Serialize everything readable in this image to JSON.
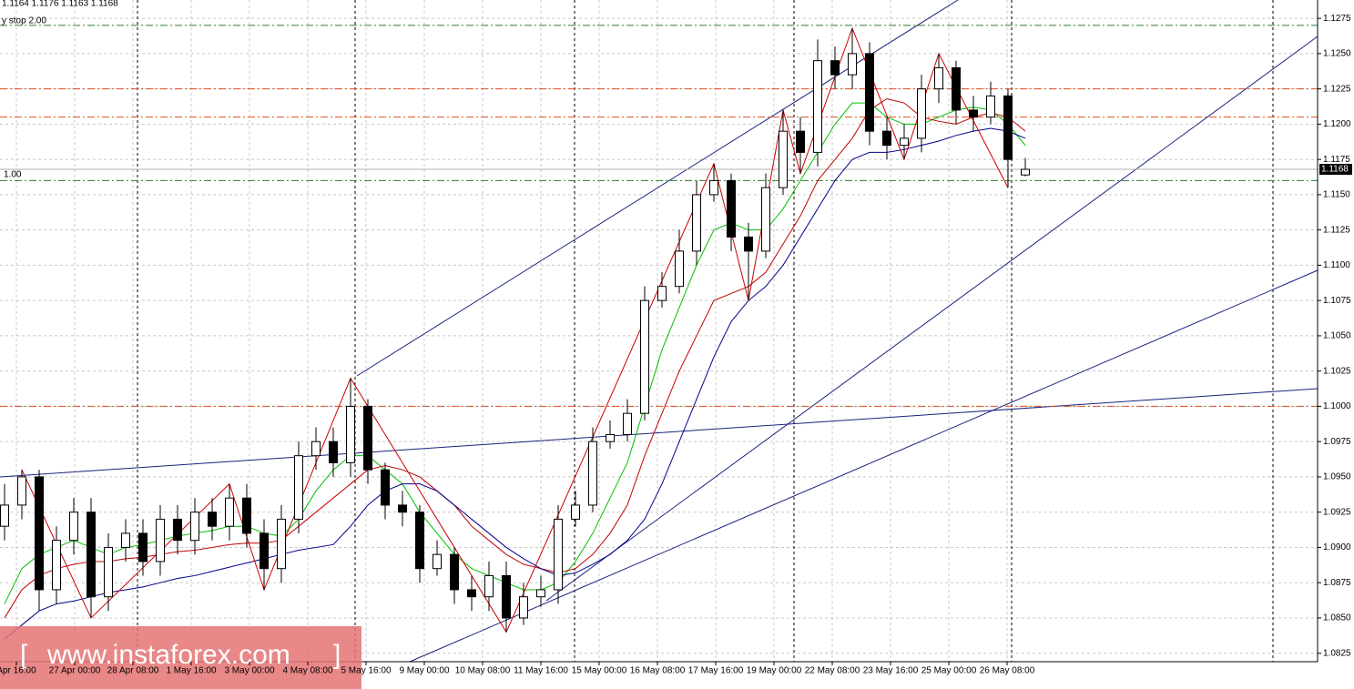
{
  "chart_data": {
    "type": "candlestick",
    "title": "1.1164 1.1176 1.1163 1.1168",
    "indicator_label": "y stop 2.00",
    "level_label": "1.00",
    "watermark": "www.instaforex.com",
    "categories": [
      "Apr 16:00",
      "27 Apr 00:00",
      "28 Apr 08:00",
      "1 May 16:00",
      "3 May 00:00",
      "4 May 08:00",
      "5 May 16:00",
      "9 May 00:00",
      "10 May 08:00",
      "11 May 16:00",
      "15 May 00:00",
      "16 May 08:00",
      "17 May 16:00",
      "19 May 00:00",
      "22 May 08:00",
      "23 May 16:00",
      "25 May 00:00",
      "26 May 08:00"
    ],
    "open": [
      1.0915,
      1.093,
      1.095,
      1.087,
      1.0905,
      1.0925,
      1.0865,
      1.09,
      1.091,
      1.089,
      1.092,
      1.0905,
      1.0925,
      1.0915,
      1.0935,
      1.091,
      1.0885,
      1.092,
      1.0965,
      1.0975,
      1.096,
      1.1,
      1.0955,
      1.093,
      1.0925,
      1.0885,
      1.0895,
      1.087,
      1.0865,
      1.088,
      1.085,
      1.0865,
      1.087,
      1.092,
      1.093,
      1.0975,
      1.098,
      1.0995,
      1.1075,
      1.1085,
      1.111,
      1.115,
      1.116,
      1.112,
      1.111,
      1.1155,
      1.1195,
      1.118,
      1.1245,
      1.1235,
      1.125,
      1.1195,
      1.1185,
      1.119,
      1.1225,
      1.124,
      1.121,
      1.1205,
      1.122,
      1.1164
    ],
    "high": [
      1.0945,
      1.0955,
      1.0955,
      1.0915,
      1.0935,
      1.0935,
      1.091,
      1.092,
      1.092,
      1.093,
      1.093,
      1.0935,
      1.0935,
      1.0945,
      1.0945,
      1.092,
      1.093,
      1.0975,
      1.0985,
      1.0985,
      1.102,
      1.1005,
      1.096,
      1.094,
      1.093,
      1.0905,
      1.09,
      1.088,
      1.089,
      1.089,
      1.0875,
      1.088,
      1.093,
      1.094,
      1.0985,
      1.099,
      1.1005,
      1.1085,
      1.1095,
      1.1125,
      1.116,
      1.1172,
      1.1165,
      1.113,
      1.1165,
      1.121,
      1.1205,
      1.126,
      1.1255,
      1.1268,
      1.1258,
      1.1205,
      1.12,
      1.1235,
      1.125,
      1.1245,
      1.122,
      1.123,
      1.1225,
      1.1176
    ],
    "low": [
      1.0905,
      1.092,
      1.0855,
      1.086,
      1.0895,
      1.085,
      1.0855,
      1.089,
      1.088,
      1.088,
      1.0895,
      1.0895,
      1.0905,
      1.0905,
      1.09,
      1.087,
      1.0875,
      1.091,
      1.0955,
      1.095,
      1.095,
      1.0945,
      1.092,
      1.0915,
      1.0875,
      1.088,
      1.086,
      1.0855,
      1.0855,
      1.084,
      1.0845,
      1.0858,
      1.086,
      1.0915,
      1.0925,
      1.097,
      1.0975,
      1.099,
      1.107,
      1.108,
      1.11,
      1.1145,
      1.111,
      1.1075,
      1.1105,
      1.115,
      1.1165,
      1.117,
      1.1225,
      1.1225,
      1.1185,
      1.1175,
      1.1175,
      1.118,
      1.1215,
      1.12,
      1.1195,
      1.12,
      1.1155,
      1.1163
    ],
    "close": [
      1.093,
      1.095,
      1.087,
      1.0905,
      1.0925,
      1.0865,
      1.09,
      1.091,
      1.089,
      1.092,
      1.0905,
      1.0925,
      1.0915,
      1.0935,
      1.091,
      1.0885,
      1.092,
      1.0965,
      1.0975,
      1.096,
      1.1,
      1.0955,
      1.093,
      1.0925,
      1.0885,
      1.0895,
      1.087,
      1.0865,
      1.088,
      1.085,
      1.0865,
      1.087,
      1.092,
      1.093,
      1.0975,
      1.098,
      1.0995,
      1.1075,
      1.1085,
      1.111,
      1.115,
      1.116,
      1.112,
      1.111,
      1.1155,
      1.1195,
      1.118,
      1.1245,
      1.1235,
      1.125,
      1.1195,
      1.1185,
      1.119,
      1.1225,
      1.124,
      1.121,
      1.1205,
      1.122,
      1.1175,
      1.1168
    ],
    "moving_averages": [
      {
        "color": "#00c000",
        "values": [
          1.086,
          1.0885,
          1.0895,
          1.09,
          1.0905,
          1.09,
          1.0895,
          1.09,
          1.0902,
          1.0905,
          1.0908,
          1.091,
          1.0912,
          1.0915,
          1.0915,
          1.091,
          1.0908,
          1.092,
          1.094,
          1.0955,
          1.0965,
          1.0965,
          1.0955,
          1.0945,
          1.0925,
          1.091,
          1.0895,
          1.0885,
          1.088,
          1.0875,
          1.087,
          1.087,
          1.0875,
          1.089,
          1.091,
          1.0935,
          1.096,
          1.1,
          1.104,
          1.107,
          1.11,
          1.1125,
          1.113,
          1.1125,
          1.1125,
          1.114,
          1.116,
          1.118,
          1.12,
          1.1215,
          1.1215,
          1.1205,
          1.12,
          1.12,
          1.1205,
          1.121,
          1.1212,
          1.121,
          1.12,
          1.1185
        ]
      },
      {
        "color": "#c00000",
        "values": [
          1.085,
          1.087,
          1.088,
          1.0885,
          1.0888,
          1.089,
          1.089,
          1.0892,
          1.0893,
          1.0895,
          1.0897,
          1.0898,
          1.09,
          1.0902,
          1.0903,
          1.0903,
          1.0905,
          1.0915,
          1.0925,
          1.0935,
          1.0945,
          1.0955,
          1.0958,
          1.0955,
          1.095,
          1.094,
          1.093,
          1.0915,
          1.0905,
          1.0895,
          1.0888,
          1.0885,
          1.0882,
          1.0885,
          1.0895,
          1.091,
          1.093,
          1.0965,
          1.0995,
          1.1025,
          1.105,
          1.1075,
          1.108,
          1.1085,
          1.1095,
          1.1115,
          1.1135,
          1.116,
          1.1175,
          1.119,
          1.121,
          1.1218,
          1.1215,
          1.1205,
          1.1202,
          1.12,
          1.1205,
          1.1208,
          1.1205,
          1.1195
        ]
      },
      {
        "color": "#00008b",
        "values": [
          1.0835,
          1.0845,
          1.0855,
          1.086,
          1.0862,
          1.0865,
          1.0868,
          1.087,
          1.0872,
          1.0875,
          1.0878,
          1.088,
          1.0883,
          1.0886,
          1.0889,
          1.0892,
          1.0895,
          1.0898,
          1.09,
          1.0902,
          1.0915,
          1.093,
          1.094,
          1.0945,
          1.0945,
          1.094,
          1.093,
          1.092,
          1.091,
          1.09,
          1.0892,
          1.0885,
          1.088,
          1.0882,
          1.0888,
          1.0895,
          1.0905,
          1.092,
          1.0945,
          1.0975,
          1.1005,
          1.1035,
          1.106,
          1.1075,
          1.1085,
          1.11,
          1.112,
          1.114,
          1.116,
          1.1175,
          1.118,
          1.118,
          1.1182,
          1.1185,
          1.1188,
          1.1192,
          1.1195,
          1.1197,
          1.1195,
          1.119
        ]
      }
    ],
    "zigzag": {
      "color": "#cc0000",
      "x": [
        1,
        5,
        13,
        15,
        20,
        29,
        41,
        43,
        45,
        46,
        49,
        52,
        54,
        58
      ],
      "values": [
        1.0955,
        1.085,
        1.0945,
        1.087,
        1.102,
        1.084,
        1.1172,
        1.1075,
        1.121,
        1.1165,
        1.1268,
        1.1175,
        1.125,
        1.1155
      ]
    },
    "levels": {
      "values": [
        1.127,
        1.1225,
        1.1205,
        1.116,
        1.1
      ],
      "colors": [
        "#2e7d32",
        "#e05020",
        "#e05020",
        "#2e7d32",
        "#e05020"
      ]
    },
    "current_price": 1.1168,
    "ylim": [
      1.0819,
      1.1288
    ],
    "yticks": [
      1.0825,
      {
        "value": 1.085,
        "label": "1.0850"
      },
      1.0875,
      {
        "value": 1.09,
        "label": "1.0900"
      },
      1.0925,
      {
        "value": 1.095,
        "label": "1.0950"
      },
      1.0975,
      {
        "value": 1.1,
        "label": "1.1000"
      },
      1.1025,
      {
        "value": 1.105,
        "label": "1.1050"
      },
      1.1075,
      {
        "value": 1.11,
        "label": "1.1100"
      },
      1.1125,
      {
        "value": 1.115,
        "label": "1.1150"
      },
      1.1175,
      {
        "value": 1.12,
        "label": "1.1200"
      },
      1.1225,
      {
        "value": 1.125,
        "label": "1.1250"
      },
      1.1275
    ],
    "grid": true
  }
}
